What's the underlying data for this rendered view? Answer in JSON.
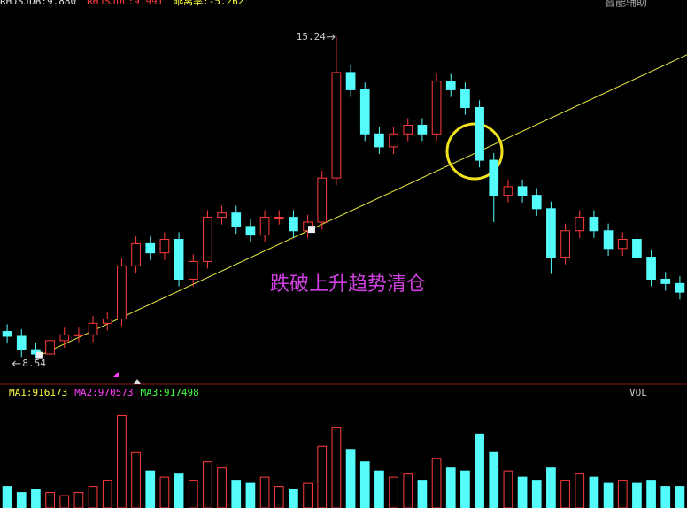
{
  "chart_data": {
    "type": "candlestick",
    "header": [
      "RHJSJDB:9.880",
      "RHJSJDC:9.991",
      "乖离率:-5.262"
    ],
    "header_colors": [
      "#e0e0e0",
      "#ff4040",
      "#ffff40"
    ],
    "assist_label": "智能辅助",
    "annotation": "跌破上升趋势清仓",
    "high_label": "15.24",
    "low_label": "8.54",
    "up_color": "#ff3c3c",
    "down_color": "#54fcfc",
    "ylim": [
      8.04,
      15.79
    ],
    "open": [
      9.1,
      9.0,
      8.72,
      8.63,
      8.91,
      9.03,
      9.03,
      9.27,
      9.36,
      10.47,
      10.93,
      10.74,
      11.02,
      10.19,
      10.56,
      11.48,
      11.57,
      11.29,
      11.11,
      11.48,
      11.48,
      11.2,
      11.38,
      12.3,
      14.5,
      14.14,
      13.22,
      12.95,
      13.22,
      13.4,
      13.22,
      14.32,
      14.14,
      13.77,
      12.67,
      11.94,
      12.12,
      11.94,
      11.66,
      10.65,
      11.2,
      11.48,
      11.2,
      10.83,
      11.02,
      10.65,
      10.19,
      10.1
    ],
    "high": [
      9.25,
      9.15,
      8.87,
      9.06,
      9.18,
      9.18,
      9.42,
      9.51,
      10.62,
      11.08,
      11.08,
      11.17,
      11.17,
      10.71,
      11.63,
      11.72,
      11.72,
      11.44,
      11.63,
      11.63,
      11.63,
      11.53,
      12.45,
      15.24,
      14.65,
      14.29,
      13.37,
      13.37,
      13.55,
      13.55,
      14.47,
      14.47,
      14.29,
      13.92,
      12.82,
      12.27,
      12.27,
      12.09,
      11.81,
      11.35,
      11.63,
      11.63,
      11.35,
      11.17,
      11.17,
      10.8,
      10.34,
      10.25
    ],
    "low": [
      8.85,
      8.57,
      8.54,
      8.58,
      8.76,
      8.88,
      8.88,
      9.12,
      9.21,
      10.32,
      10.59,
      10.59,
      10.04,
      10.04,
      10.41,
      11.33,
      11.14,
      10.96,
      10.96,
      11.33,
      11.05,
      11.05,
      11.23,
      12.15,
      13.99,
      13.07,
      12.8,
      12.8,
      13.07,
      13.07,
      13.07,
      13.99,
      13.62,
      12.52,
      11.38,
      11.79,
      11.79,
      11.51,
      10.3,
      10.5,
      11.05,
      11.05,
      10.68,
      10.68,
      10.5,
      10.04,
      9.95,
      9.77
    ],
    "close": [
      9.0,
      8.72,
      8.63,
      8.91,
      9.03,
      9.03,
      9.27,
      9.36,
      10.47,
      10.93,
      10.74,
      11.02,
      10.19,
      10.56,
      11.48,
      11.57,
      11.29,
      11.11,
      11.48,
      11.48,
      11.2,
      11.38,
      12.3,
      14.5,
      14.14,
      13.22,
      12.95,
      13.22,
      13.4,
      13.22,
      14.32,
      14.14,
      13.77,
      12.67,
      11.94,
      12.12,
      11.94,
      11.66,
      10.65,
      11.2,
      11.48,
      11.2,
      10.83,
      11.02,
      10.65,
      10.19,
      10.1,
      9.92
    ],
    "trendline": {
      "color": "#e8e840",
      "x": [
        2.28,
        47.5
      ],
      "y": [
        8.6,
        14.87
      ]
    },
    "touch_points": {
      "x": [
        2.28,
        21.27
      ],
      "y": [
        8.6,
        11.23
      ]
    },
    "volume": {
      "header": [
        "MA1:916173",
        "MA2:970573",
        "MA3:917498"
      ],
      "header_colors": [
        "#ffff40",
        "#ff40ff",
        "#40ff40"
      ],
      "label": "VOL",
      "ylim": [
        0,
        3500000
      ],
      "values": [
        700000,
        500000,
        600000,
        500000,
        400000,
        500000,
        700000,
        900000,
        3000000,
        1800000,
        1200000,
        1000000,
        1100000,
        900000,
        1500000,
        1300000,
        900000,
        800000,
        1000000,
        700000,
        600000,
        800000,
        2000000,
        2600000,
        1900000,
        1500000,
        1200000,
        1000000,
        1100000,
        900000,
        1600000,
        1300000,
        1200000,
        2400000,
        1800000,
        1200000,
        1000000,
        900000,
        1300000,
        900000,
        1100000,
        1000000,
        800000,
        900000,
        800000,
        900000,
        700000,
        700000
      ]
    }
  }
}
